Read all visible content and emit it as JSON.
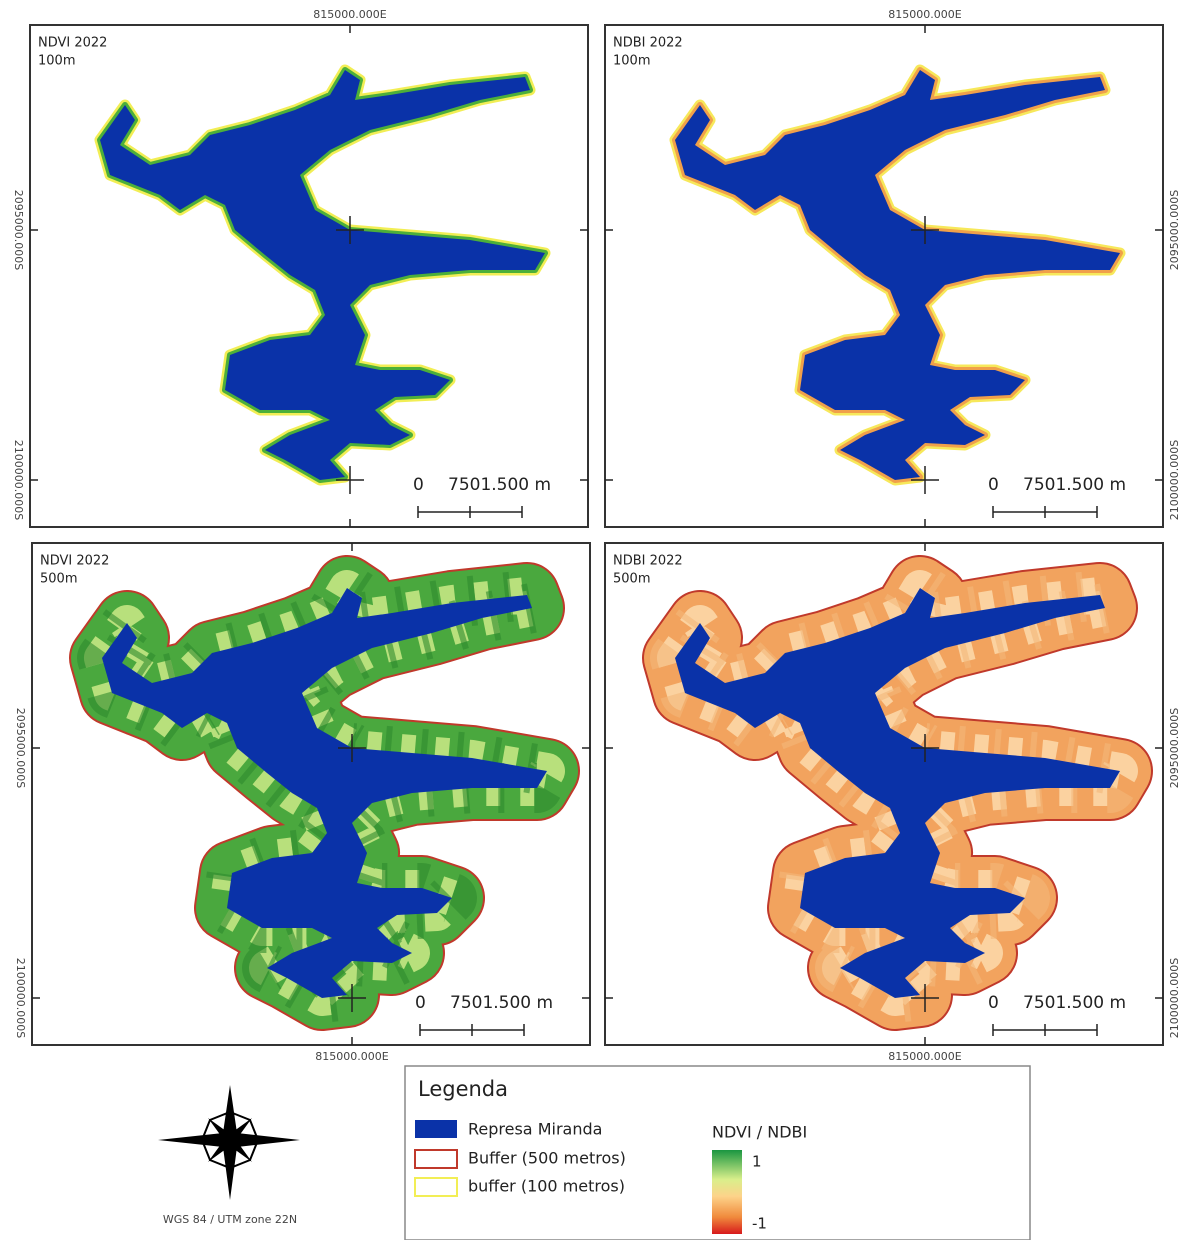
{
  "panels": [
    {
      "title": "NDVI 2022",
      "subtitle": "100m",
      "buffer_color": "#4caf3a",
      "outline_color": "#f2ee55"
    },
    {
      "title": "NDBI 2022",
      "subtitle": "100m",
      "buffer_color": "#f0a04a",
      "outline_color": "#f7e85a"
    },
    {
      "title": "NDVI 2022",
      "subtitle": "500m",
      "buffer_color": "#4aa83e",
      "outline_color": "#c0392b"
    },
    {
      "title": "NDBI 2022",
      "subtitle": "500m",
      "buffer_color": "#f2a35e",
      "outline_color": "#c0392b"
    }
  ],
  "coordinates": {
    "easting": "815000.000E",
    "northing_1": "2095000.000S",
    "northing_2": "2100000.000S"
  },
  "scalebar": {
    "start": "0",
    "length": "7501.500 m"
  },
  "legend": {
    "title": "Legenda",
    "items": [
      "Represa Miranda",
      "Buffer (500 metros)",
      "buffer (100 metros)"
    ],
    "ramp_title": "NDVI / NDBI",
    "ramp_max": "1",
    "ramp_min": "-1"
  },
  "crs": "WGS 84 / UTM zone 22N"
}
